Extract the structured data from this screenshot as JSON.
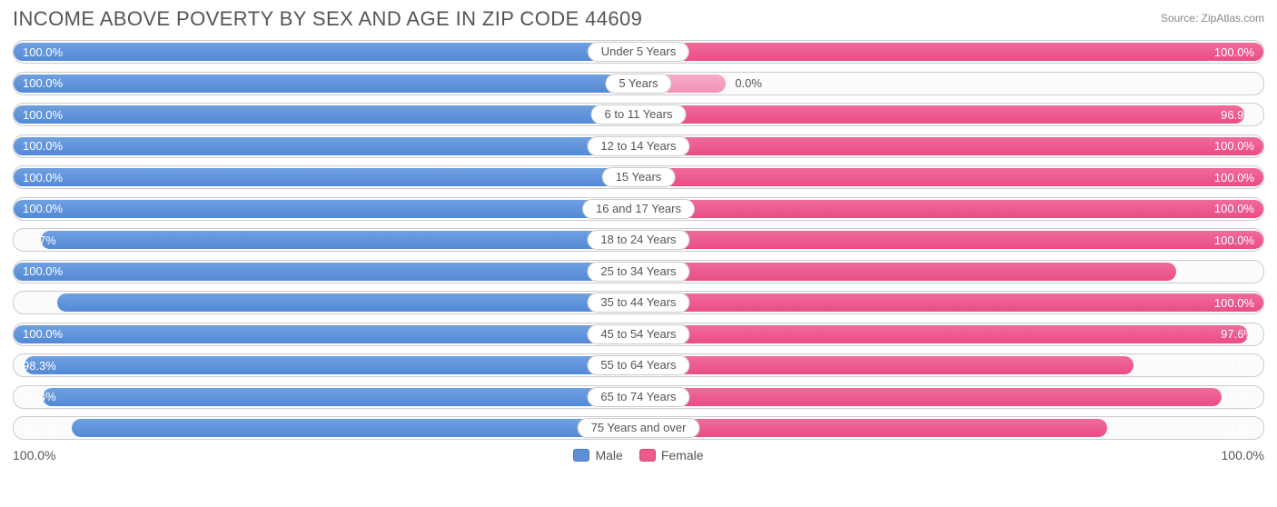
{
  "header": {
    "title": "INCOME ABOVE POVERTY BY SEX AND AGE IN ZIP CODE 44609",
    "source": "Source: ZipAtlas.com"
  },
  "chart": {
    "type": "diverging-bar",
    "male_color": "#5c91d9",
    "female_color": "#ec5a8e",
    "female_bg_color": "#f59ebe",
    "track_border": "#cccccc",
    "background_color": "#ffffff",
    "label_fontsize": 13,
    "title_fontsize": 22,
    "rows": [
      {
        "category": "Under 5 Years",
        "male": 100.0,
        "female": 100.0
      },
      {
        "category": "5 Years",
        "male": 100.0,
        "female": 0.0,
        "female_bg": 14.0
      },
      {
        "category": "6 to 11 Years",
        "male": 100.0,
        "female": 96.9
      },
      {
        "category": "12 to 14 Years",
        "male": 100.0,
        "female": 100.0
      },
      {
        "category": "15 Years",
        "male": 100.0,
        "female": 100.0
      },
      {
        "category": "16 and 17 Years",
        "male": 100.0,
        "female": 100.0
      },
      {
        "category": "18 to 24 Years",
        "male": 95.7,
        "female": 100.0
      },
      {
        "category": "25 to 34 Years",
        "male": 100.0,
        "female": 86.0
      },
      {
        "category": "35 to 44 Years",
        "male": 93.0,
        "female": 100.0
      },
      {
        "category": "45 to 54 Years",
        "male": 100.0,
        "female": 97.6
      },
      {
        "category": "55 to 64 Years",
        "male": 98.3,
        "female": 79.2
      },
      {
        "category": "65 to 74 Years",
        "male": 95.4,
        "female": 93.3
      },
      {
        "category": "75 Years and over",
        "male": 90.7,
        "female": 75.0
      }
    ]
  },
  "footer": {
    "axis_left": "100.0%",
    "axis_right": "100.0%",
    "legend": [
      {
        "label": "Male",
        "color": "#5c91d9"
      },
      {
        "label": "Female",
        "color": "#ec5a8e"
      }
    ]
  }
}
